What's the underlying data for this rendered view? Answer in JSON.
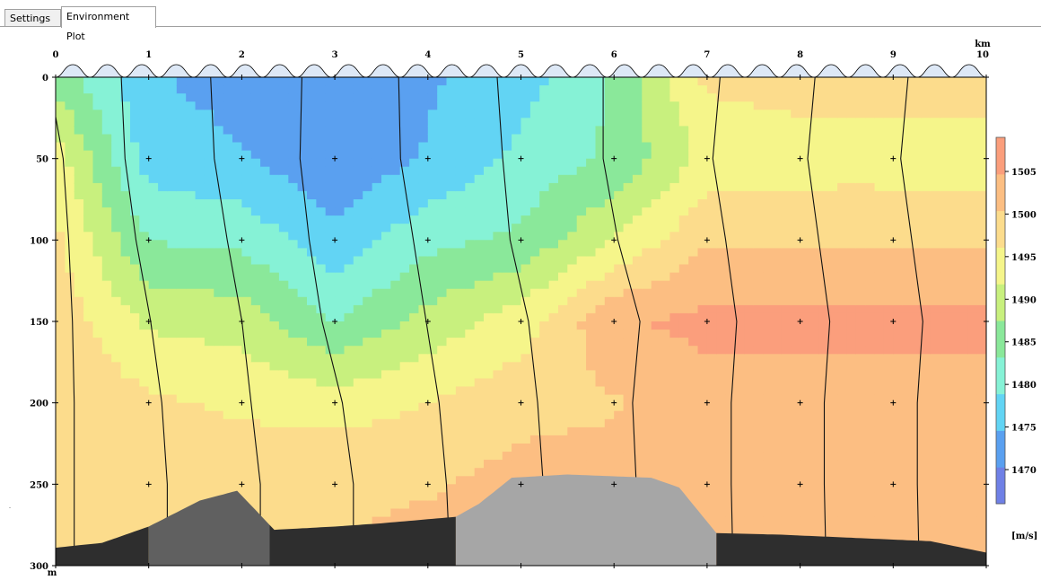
{
  "tabs": [
    {
      "label": "Settings",
      "active": false
    },
    {
      "label": "Environment Plot",
      "active": true
    }
  ],
  "chart_data": {
    "type": "heatmap",
    "title": "",
    "x_unit": "km",
    "y_unit": "m",
    "xlim": [
      0,
      10
    ],
    "ylim": [
      0,
      300
    ],
    "y_inverted": true,
    "x_ticks": [
      "0",
      "1",
      "2",
      "3",
      "4",
      "5",
      "6",
      "7",
      "8",
      "9",
      "10"
    ],
    "y_ticks": [
      "0",
      "50",
      "100",
      "150",
      "200",
      "250",
      "300"
    ],
    "colorbar": {
      "label": "[m/s]",
      "range": [
        1466,
        1509
      ],
      "ticks": [
        "1470",
        "1475",
        "1480",
        "1485",
        "1490",
        "1495",
        "1500",
        "1505"
      ],
      "colors": [
        "#6f80e6",
        "#5aa0f0",
        "#62d4f4",
        "#86f2d6",
        "#8ae89a",
        "#c8f07e",
        "#f5f58a",
        "#fcdc8c",
        "#fcbe82",
        "#fb9e7c"
      ]
    },
    "sample_stations_km": [
      1,
      2,
      3,
      4,
      5,
      6,
      7,
      8,
      9
    ],
    "sample_depths_m": [
      50,
      100,
      150,
      200,
      250
    ],
    "sound_speed": [
      [
        1486,
        1475,
        1473,
        1472,
        1474,
        1477,
        1484,
        1497,
        1498,
        1498
      ],
      [
        1494,
        1477,
        1475,
        1471,
        1475,
        1480,
        1484,
        1493,
        1494,
        1494
      ],
      [
        1497,
        1483,
        1482,
        1476,
        1482,
        1484,
        1492,
        1500,
        1500,
        1500
      ],
      [
        1499,
        1491,
        1490,
        1483,
        1489,
        1494,
        1504,
        1506,
        1506,
        1506
      ],
      [
        1500,
        1497,
        1495,
        1494,
        1496,
        1499,
        1500,
        1503,
        1503,
        1503
      ],
      [
        1500,
        1500,
        1500,
        1500,
        1500,
        1502,
        1502,
        1503,
        1503,
        1503
      ],
      [
        1500,
        1500,
        1500,
        1500,
        1502,
        1503,
        1503,
        1504,
        1504,
        1504
      ]
    ],
    "profile_stations_km": [
      0,
      1,
      2,
      3,
      4,
      5,
      6,
      7,
      8,
      9
    ],
    "bathymetry_m": [
      {
        "x": 0,
        "y": 289
      },
      {
        "x": 0.5,
        "y": 286
      },
      {
        "x": 1,
        "y": 276
      },
      {
        "x": 1.55,
        "y": 260
      },
      {
        "x": 1.95,
        "y": 254
      },
      {
        "x": 2.35,
        "y": 278
      },
      {
        "x": 3,
        "y": 276
      },
      {
        "x": 3.5,
        "y": 274
      },
      {
        "x": 4.3,
        "y": 270
      },
      {
        "x": 4.55,
        "y": 262
      },
      {
        "x": 4.9,
        "y": 246
      },
      {
        "x": 5.5,
        "y": 244
      },
      {
        "x": 6.4,
        "y": 246
      },
      {
        "x": 6.7,
        "y": 252
      },
      {
        "x": 7.1,
        "y": 280
      },
      {
        "x": 7.8,
        "y": 281
      },
      {
        "x": 8.6,
        "y": 283
      },
      {
        "x": 9.4,
        "y": 285
      },
      {
        "x": 10,
        "y": 292
      }
    ],
    "sediment_blocks": [
      {
        "x_start": 0,
        "x_end": 1,
        "color": "#2e2e2e"
      },
      {
        "x_start": 1,
        "x_end": 2.3,
        "color": "#606060"
      },
      {
        "x_start": 2.3,
        "x_end": 4.3,
        "color": "#2e2e2e"
      },
      {
        "x_start": 4.3,
        "x_end": 7.1,
        "color": "#a6a6a6"
      },
      {
        "x_start": 7.1,
        "x_end": 10,
        "color": "#2e2e2e"
      }
    ]
  }
}
